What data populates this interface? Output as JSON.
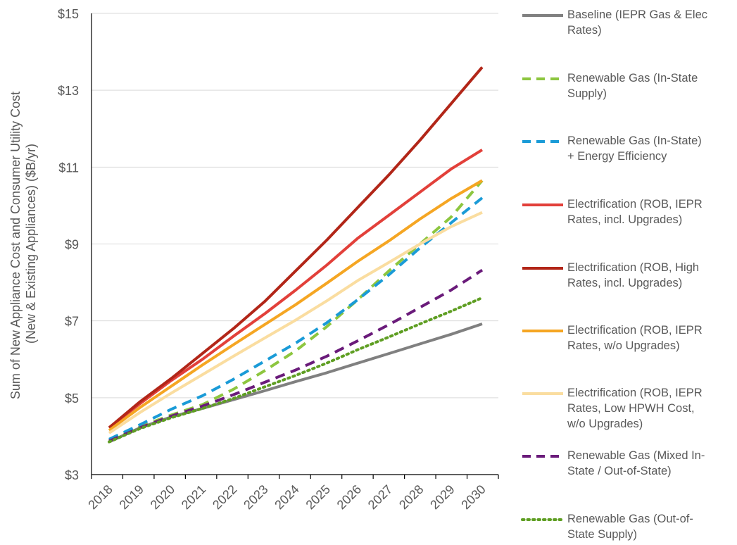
{
  "chart_data": {
    "type": "line",
    "title": "",
    "xlabel": "",
    "ylabel": "Sum of New Appliance Cost and Consumer Utility Cost (New & Existing Appliances) ($B/yr)",
    "ylabel_lines": [
      "Sum of New Appliance Cost and Consumer Utility Cost",
      "(New & Existing Appliances) ($B/yr)"
    ],
    "ylim": [
      3,
      15
    ],
    "yticks": [
      3,
      5,
      7,
      9,
      11,
      13,
      15
    ],
    "ytick_labels": [
      "$3",
      "$5",
      "$7",
      "$9",
      "$11",
      "$13",
      "$15"
    ],
    "categories": [
      "2018",
      "2019",
      "2020",
      "2021",
      "2022",
      "2023",
      "2024",
      "2025",
      "2026",
      "2027",
      "2028",
      "2029",
      "2030"
    ],
    "legend_position": "right",
    "grid": "horizontal",
    "series": [
      {
        "name": "Baseline (IEPR Gas & Elec Rates)",
        "color": "#808080",
        "dash": "solid",
        "values": [
          3.85,
          4.22,
          4.5,
          4.72,
          4.95,
          5.18,
          5.42,
          5.65,
          5.9,
          6.15,
          6.4,
          6.65,
          6.92
        ]
      },
      {
        "name": "Renewable Gas (In-State Supply)",
        "color": "#8DC63F",
        "dash": "dashed",
        "values": [
          3.88,
          4.25,
          4.55,
          4.82,
          5.22,
          5.7,
          6.22,
          6.85,
          7.55,
          8.3,
          9.0,
          9.7,
          10.65
        ]
      },
      {
        "name": "Renewable Gas (In-State) + Energy Efficiency",
        "color": "#1A9BD7",
        "dash": "dashed",
        "values": [
          3.92,
          4.3,
          4.7,
          5.05,
          5.48,
          5.95,
          6.42,
          6.95,
          7.55,
          8.2,
          8.9,
          9.55,
          10.2
        ]
      },
      {
        "name": "Electrification (ROB, IEPR Rates, incl. Upgrades)",
        "color": "#E2403A",
        "dash": "solid",
        "values": [
          4.22,
          4.85,
          5.45,
          6.0,
          6.6,
          7.18,
          7.8,
          8.45,
          9.15,
          9.75,
          10.35,
          10.95,
          11.45
        ]
      },
      {
        "name": "Electrification (ROB, High Rates, incl. Upgrades)",
        "color": "#B22618",
        "dash": "solid",
        "values": [
          4.22,
          4.9,
          5.5,
          6.15,
          6.8,
          7.5,
          8.3,
          9.1,
          9.95,
          10.8,
          11.7,
          12.65,
          13.6
        ]
      },
      {
        "name": "Electrification (ROB, IEPR Rates, w/o Upgrades)",
        "color": "#F5A623",
        "dash": "solid",
        "values": [
          4.15,
          4.75,
          5.3,
          5.85,
          6.38,
          6.9,
          7.42,
          7.98,
          8.55,
          9.08,
          9.65,
          10.18,
          10.65
        ]
      },
      {
        "name": "Electrification (ROB, IEPR Rates, Low HPWH Cost, w/o Upgrades)",
        "color": "#FADDA0",
        "dash": "solid",
        "values": [
          4.08,
          4.62,
          5.12,
          5.6,
          6.08,
          6.55,
          7.02,
          7.52,
          8.05,
          8.52,
          9.0,
          9.45,
          9.82
        ]
      },
      {
        "name": "Renewable Gas (Mixed In-State / Out-of-State)",
        "color": "#6A1B7A",
        "dash": "dashed",
        "values": [
          3.87,
          4.22,
          4.52,
          4.78,
          5.08,
          5.4,
          5.72,
          6.08,
          6.48,
          6.9,
          7.35,
          7.8,
          8.32
        ]
      },
      {
        "name": "Renewable Gas (Out-of-State Supply)",
        "color": "#5E9E22",
        "dash": "dotted",
        "values": [
          3.85,
          4.2,
          4.48,
          4.72,
          4.98,
          5.28,
          5.58,
          5.9,
          6.25,
          6.58,
          6.92,
          7.25,
          7.6
        ]
      }
    ]
  },
  "legend": {
    "items": [
      {
        "lines": [
          "Baseline (IEPR Gas & Elec",
          "Rates)"
        ]
      },
      {
        "lines": [
          "Renewable Gas (In-State",
          "Supply)"
        ]
      },
      {
        "lines": [
          "Renewable Gas (In-State)",
          "+ Energy Efficiency"
        ]
      },
      {
        "lines": [
          "Electrification (ROB, IEPR",
          "Rates, incl. Upgrades)"
        ]
      },
      {
        "lines": [
          "Electrification (ROB, High",
          "Rates, incl. Upgrades)"
        ]
      },
      {
        "lines": [
          "Electrification (ROB, IEPR",
          "Rates, w/o Upgrades)"
        ]
      },
      {
        "lines": [
          "Electrification (ROB, IEPR",
          "Rates, Low HPWH Cost,",
          "w/o Upgrades)"
        ]
      },
      {
        "lines": [
          "Renewable Gas (Mixed In-",
          "State / Out-of-State)"
        ]
      },
      {
        "lines": [
          "Renewable Gas (Out-of-",
          "State Supply)"
        ]
      }
    ]
  }
}
